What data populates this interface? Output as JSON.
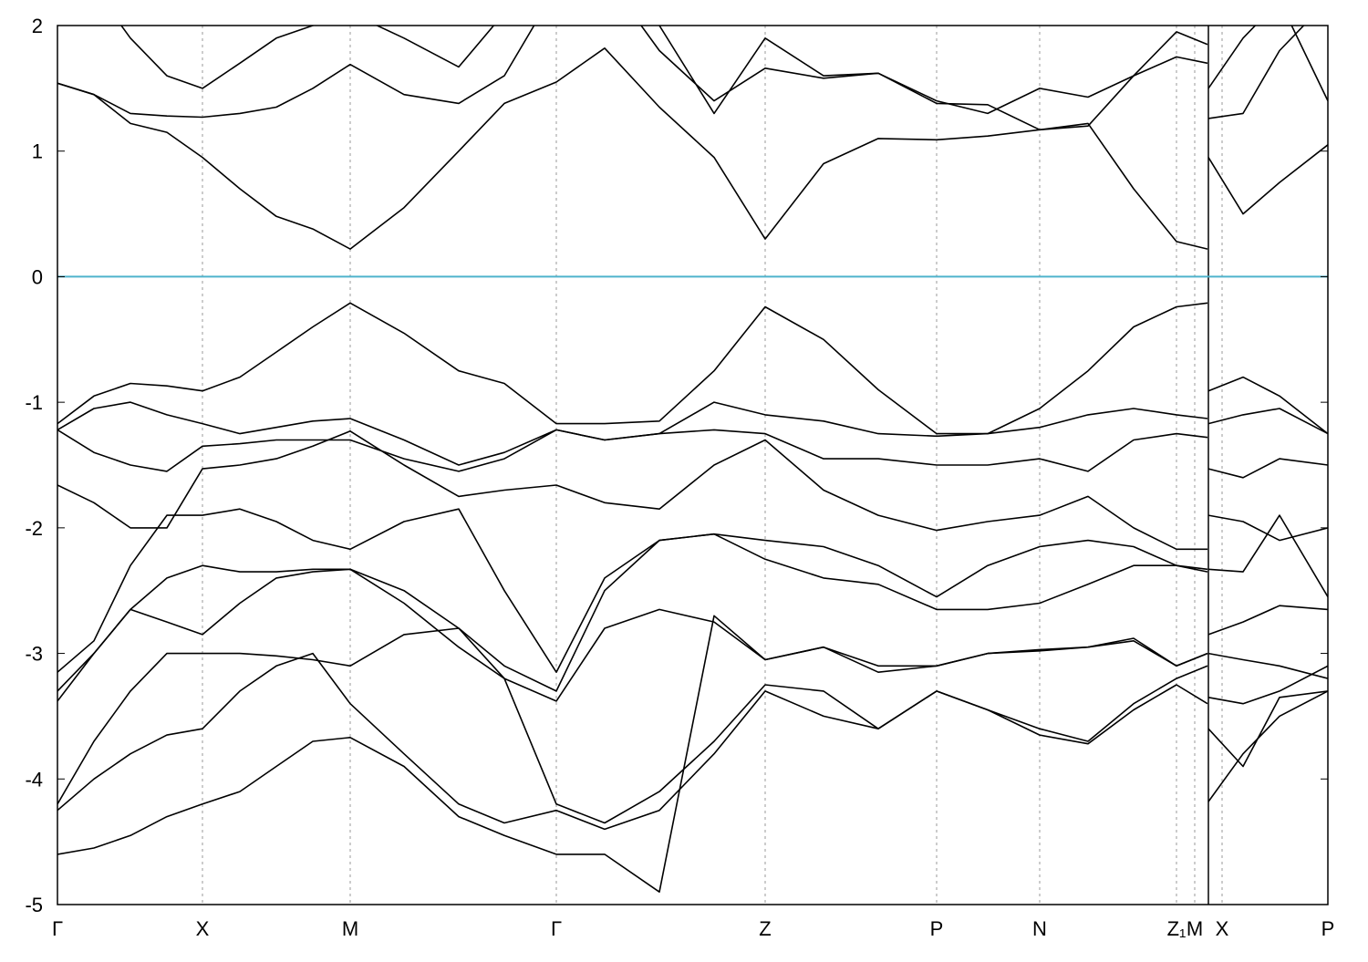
{
  "chart_data": {
    "type": "line",
    "x": [
      0,
      40,
      80,
      120,
      159,
      200,
      240,
      280,
      321,
      380,
      440,
      490,
      547,
      600,
      660,
      720,
      776,
      840,
      900,
      964,
      1020,
      1077,
      1130,
      1180,
      1227,
      1261,
      1261.5,
      1262,
      1300,
      1340,
      1393
    ],
    "xlim": [
      0,
      1393
    ],
    "xticks": [
      {
        "value": 0,
        "label": "Γ"
      },
      {
        "value": 159,
        "label": "X"
      },
      {
        "value": 321,
        "label": "M"
      },
      {
        "value": 547,
        "label": "Γ"
      },
      {
        "value": 776,
        "label": "Z"
      },
      {
        "value": 964,
        "label": "P"
      },
      {
        "value": 1077,
        "label": "N"
      },
      {
        "value": 1227,
        "label": "Z₁"
      },
      {
        "value": 1247,
        "label": "M"
      },
      {
        "value": 1277,
        "label": "X"
      },
      {
        "value": 1393,
        "label": "P"
      }
    ],
    "ylim": [
      -5,
      2
    ],
    "yticks": [
      -5,
      -4,
      -3,
      -2,
      -1,
      0,
      1,
      2
    ],
    "grid": true,
    "reference_line": {
      "y": 0,
      "color": "#4fb3cc"
    },
    "series": [
      {
        "color": "#000000",
        "values": [
          1.54,
          1.45,
          1.22,
          1.15,
          0.95,
          0.7,
          0.48,
          0.38,
          0.22,
          0.55,
          1.0,
          1.38,
          1.55,
          1.82,
          1.35,
          0.95,
          0.3,
          0.9,
          1.1,
          1.09,
          1.12,
          1.17,
          1.22,
          0.7,
          0.28,
          0.22,
          null,
          0.95,
          0.5,
          0.75,
          1.05
        ]
      },
      {
        "color": "#000000",
        "values": [
          1.54,
          1.45,
          1.3,
          1.28,
          1.27,
          1.3,
          1.35,
          1.5,
          1.69,
          1.45,
          1.38,
          1.6,
          2.3,
          2.4,
          1.8,
          1.4,
          1.66,
          1.58,
          1.62,
          1.4,
          1.3,
          1.5,
          1.43,
          1.6,
          1.75,
          1.7,
          null,
          1.5,
          1.9,
          2.2,
          1.4
        ]
      },
      {
        "color": "#000000",
        "values": [
          2.5,
          2.3,
          1.9,
          1.6,
          1.5,
          1.7,
          1.9,
          2.0,
          2.1,
          1.9,
          1.67,
          2.1,
          2.5,
          2.5,
          2.0,
          1.3,
          1.9,
          1.6,
          1.62,
          1.38,
          1.37,
          1.17,
          1.2,
          1.6,
          1.95,
          1.85,
          null,
          1.26,
          1.3,
          1.8,
          2.2
        ]
      },
      {
        "color": "#000000",
        "values": [
          -1.17,
          -0.95,
          -0.85,
          -0.87,
          -0.91,
          -0.8,
          -0.6,
          -0.4,
          -0.21,
          -0.45,
          -0.75,
          -0.85,
          -1.17,
          -1.17,
          -1.15,
          -0.75,
          -0.24,
          -0.5,
          -0.9,
          -1.25,
          -1.25,
          -1.05,
          -0.75,
          -0.4,
          -0.24,
          -0.21,
          null,
          -0.91,
          -0.8,
          -0.95,
          -1.25
        ]
      },
      {
        "color": "#000000",
        "values": [
          -1.22,
          -1.05,
          -1.0,
          -1.1,
          -1.17,
          -1.25,
          -1.2,
          -1.15,
          -1.13,
          -1.3,
          -1.5,
          -1.4,
          -1.22,
          -1.3,
          -1.25,
          -1.0,
          -1.1,
          -1.15,
          -1.25,
          -1.27,
          -1.25,
          -1.2,
          -1.1,
          -1.05,
          -1.1,
          -1.13,
          null,
          -1.17,
          -1.1,
          -1.05,
          -1.25
        ]
      },
      {
        "color": "#000000",
        "values": [
          -1.22,
          -1.4,
          -1.5,
          -1.55,
          -1.35,
          -1.33,
          -1.3,
          -1.3,
          -1.3,
          -1.45,
          -1.55,
          -1.45,
          -1.22,
          -1.3,
          -1.25,
          -1.22,
          -1.25,
          -1.45,
          -1.45,
          -1.5,
          -1.5,
          -1.45,
          -1.55,
          -1.3,
          -1.25,
          -1.28,
          null,
          -1.53,
          -1.6,
          -1.45,
          -1.5
        ]
      },
      {
        "color": "#000000",
        "values": [
          -1.66,
          -1.8,
          -2.0,
          -2.0,
          -1.53,
          -1.5,
          -1.45,
          -1.35,
          -1.23,
          -1.5,
          -1.75,
          -1.7,
          -1.66,
          -1.8,
          -1.85,
          -1.5,
          -1.3,
          -1.7,
          -1.9,
          -2.02,
          -1.95,
          -1.9,
          -1.75,
          -2.0,
          -2.17,
          -2.17,
          null,
          -1.9,
          -1.95,
          -2.1,
          -2.0
        ]
      },
      {
        "color": "#000000",
        "values": [
          -3.15,
          -2.9,
          -2.3,
          -1.9,
          -1.9,
          -1.85,
          -1.95,
          -2.1,
          -2.17,
          -1.95,
          -1.85,
          -2.5,
          -3.15,
          -2.4,
          -2.1,
          -2.05,
          -2.1,
          -2.15,
          -2.3,
          -2.55,
          -2.3,
          -2.15,
          -2.1,
          -2.15,
          -2.3,
          -2.33,
          null,
          -2.33,
          -2.35,
          -1.9,
          -2.55
        ]
      },
      {
        "color": "#000000",
        "values": [
          -3.3,
          -3.0,
          -2.65,
          -2.4,
          -2.3,
          -2.35,
          -2.35,
          -2.33,
          -2.33,
          -2.5,
          -2.8,
          -3.1,
          -3.3,
          -2.5,
          -2.1,
          -2.05,
          -2.25,
          -2.4,
          -2.45,
          -2.65,
          -2.65,
          -2.6,
          -2.45,
          -2.3,
          -2.3,
          -2.35,
          null,
          -2.85,
          -2.75,
          -2.62,
          -2.65
        ]
      },
      {
        "color": "#000000",
        "values": [
          -3.38,
          -3.0,
          -2.65,
          -2.75,
          -2.85,
          -2.6,
          -2.4,
          -2.35,
          -2.33,
          -2.6,
          -2.95,
          -3.2,
          -3.38,
          -2.8,
          -2.65,
          -2.75,
          -3.05,
          -2.95,
          -3.1,
          -3.1,
          -3.0,
          -2.97,
          -2.95,
          -2.9,
          -3.1,
          -3.0,
          null,
          -3.0,
          -3.05,
          -3.1,
          -3.2
        ]
      },
      {
        "color": "#000000",
        "values": [
          -4.2,
          -3.7,
          -3.3,
          -3.0,
          -3.0,
          -3.0,
          -3.02,
          -3.05,
          -3.1,
          -2.85,
          -2.8,
          -3.2,
          -4.2,
          -4.35,
          -4.1,
          -3.7,
          -3.25,
          -3.3,
          -3.6,
          -3.3,
          -3.45,
          -3.6,
          -3.7,
          -3.4,
          -3.2,
          -3.1,
          null,
          -3.35,
          -3.4,
          -3.3,
          -3.1
        ]
      },
      {
        "color": "#000000",
        "values": [
          -4.25,
          -4.0,
          -3.8,
          -3.65,
          -3.6,
          -3.3,
          -3.1,
          -3.0,
          -3.4,
          -3.8,
          -4.2,
          -4.35,
          -4.25,
          -4.4,
          -4.25,
          -3.8,
          -3.3,
          -3.5,
          -3.6,
          -3.3,
          -3.45,
          -3.65,
          -3.72,
          -3.45,
          -3.25,
          -3.4,
          null,
          -3.6,
          -3.9,
          -3.35,
          -3.3
        ]
      },
      {
        "color": "#000000",
        "values": [
          -4.6,
          -4.55,
          -4.45,
          -4.3,
          -4.2,
          -4.1,
          -3.9,
          -3.7,
          -3.67,
          -3.9,
          -4.3,
          -4.45,
          -4.6,
          -4.6,
          -4.9,
          -2.7,
          -3.05,
          -2.95,
          -3.15,
          -3.1,
          -3.0,
          -2.98,
          -2.95,
          -2.88,
          -3.1,
          -3.0,
          null,
          -4.18,
          -3.8,
          -3.5,
          -3.3
        ]
      }
    ]
  }
}
